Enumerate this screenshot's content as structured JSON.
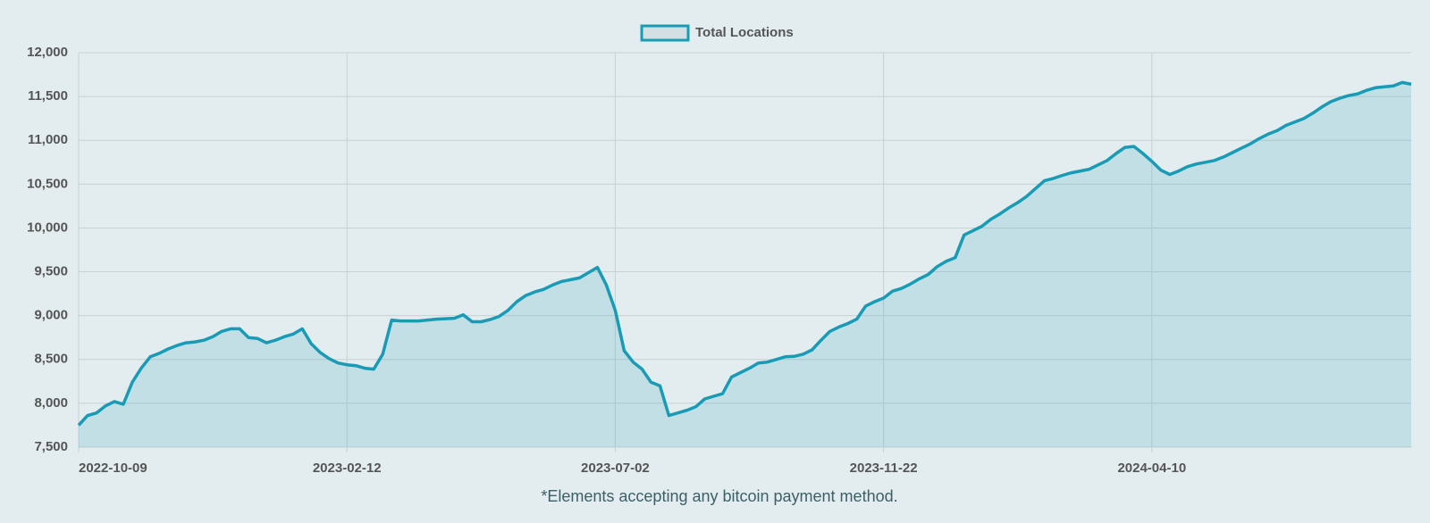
{
  "chart_data": {
    "type": "line",
    "footnote": "*Elements accepting any bitcoin payment method.",
    "categories": [
      "2022-10-09",
      null,
      null,
      null,
      null,
      null,
      null,
      null,
      null,
      null,
      null,
      null,
      null,
      null,
      null,
      null,
      null,
      null,
      null,
      null,
      null,
      null,
      null,
      null,
      null,
      null,
      null,
      null,
      null,
      null,
      "2023-02-12",
      null,
      null,
      null,
      null,
      null,
      null,
      null,
      null,
      null,
      null,
      null,
      null,
      null,
      null,
      null,
      null,
      null,
      null,
      null,
      null,
      null,
      null,
      null,
      null,
      null,
      null,
      null,
      null,
      null,
      "2023-07-02",
      null,
      null,
      null,
      null,
      null,
      null,
      null,
      null,
      null,
      null,
      null,
      null,
      null,
      null,
      null,
      null,
      null,
      null,
      null,
      null,
      null,
      null,
      null,
      null,
      null,
      null,
      null,
      null,
      null,
      "2023-11-22",
      null,
      null,
      null,
      null,
      null,
      null,
      null,
      null,
      null,
      null,
      null,
      null,
      null,
      null,
      null,
      null,
      null,
      null,
      null,
      null,
      null,
      null,
      null,
      null,
      null,
      null,
      null,
      null,
      null,
      "2024-04-10",
      null,
      null,
      null,
      null,
      null,
      null,
      null,
      null,
      null,
      null,
      null,
      null,
      null,
      null,
      null,
      null,
      null,
      null,
      null,
      null,
      null,
      null,
      null,
      null,
      null,
      null,
      null,
      null,
      null
    ],
    "series": [
      {
        "name": "Total Locations",
        "color": "#1a9bb5",
        "values": [
          7750,
          7860,
          7890,
          7970,
          8020,
          7990,
          8240,
          8400,
          8530,
          8570,
          8620,
          8660,
          8690,
          8700,
          8720,
          8760,
          8820,
          8850,
          8850,
          8750,
          8740,
          8690,
          8720,
          8760,
          8790,
          8850,
          8680,
          8580,
          8510,
          8460,
          8440,
          8430,
          8400,
          8390,
          8560,
          8950,
          8940,
          8940,
          8940,
          8950,
          8960,
          8965,
          8970,
          9010,
          8930,
          8930,
          8955,
          8990,
          9060,
          9160,
          9230,
          9270,
          9300,
          9350,
          9390,
          9410,
          9430,
          9490,
          9550,
          9350,
          9060,
          8600,
          8470,
          8390,
          8240,
          8200,
          7860,
          7890,
          7920,
          7960,
          8050,
          8080,
          8110,
          8300,
          8350,
          8400,
          8460,
          8470,
          8500,
          8530,
          8535,
          8560,
          8610,
          8720,
          8820,
          8870,
          8910,
          8960,
          9110,
          9160,
          9200,
          9280,
          9310,
          9360,
          9420,
          9470,
          9560,
          9620,
          9660,
          9920,
          9970,
          10020,
          10100,
          10160,
          10230,
          10290,
          10360,
          10450,
          10540,
          10565,
          10600,
          10630,
          10650,
          10670,
          10720,
          10770,
          10850,
          10920,
          10930,
          10850,
          10760,
          10660,
          10610,
          10650,
          10700,
          10730,
          10750,
          10770,
          10810,
          10860,
          10910,
          10960,
          11020,
          11070,
          11110,
          11170,
          11210,
          11250,
          11310,
          11380,
          11440,
          11480,
          11510,
          11530,
          11570,
          11600,
          11610,
          11620,
          11660,
          11640
        ]
      }
    ],
    "ylim": [
      7500,
      12000
    ],
    "yticks": [
      {
        "value": 7500,
        "label": "7,500"
      },
      {
        "value": 8000,
        "label": "8,000"
      },
      {
        "value": 8500,
        "label": "8,500"
      },
      {
        "value": 9000,
        "label": "9,000"
      },
      {
        "value": 9500,
        "label": "9,500"
      },
      {
        "value": 10000,
        "label": "10,000"
      },
      {
        "value": 10500,
        "label": "10,500"
      },
      {
        "value": 11000,
        "label": "11,000"
      },
      {
        "value": 11500,
        "label": "11,500"
      },
      {
        "value": 12000,
        "label": "12,000"
      }
    ],
    "grid": true,
    "legend": "top"
  }
}
